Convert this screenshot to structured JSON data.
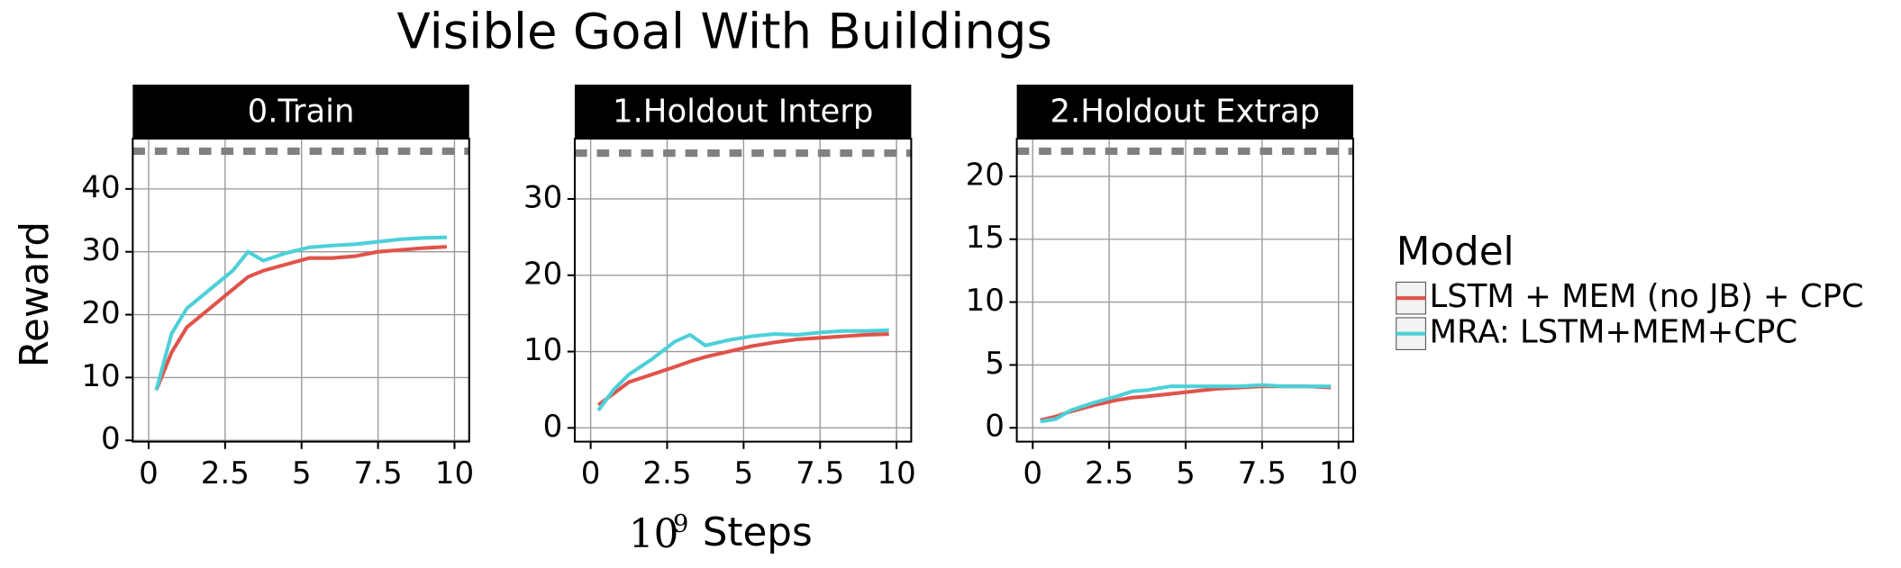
{
  "title": "Visible Goal With Buildings",
  "ylabel": "Reward",
  "xlabel_base": "10",
  "xlabel_exponent": "9",
  "xlabel": "Steps",
  "legend_title": "Model",
  "chart_data": [
    {
      "type": "line",
      "title": "0.Train",
      "x": [
        0.25,
        0.75,
        1.25,
        2,
        2.75,
        3.25,
        3.75,
        4.5,
        5.25,
        6,
        6.75,
        7.5,
        8.25,
        9,
        9.75
      ],
      "series": [
        {
          "name": "LSTM + MEM (no JB) + CPC",
          "color": "#e0534a",
          "values": [
            8,
            14,
            18,
            21,
            24,
            26,
            27,
            28,
            29,
            29,
            29.3,
            30,
            30.3,
            30.6,
            30.8
          ]
        },
        {
          "name": "MRA: LSTM+MEM+CPC",
          "color": "#4dd0d8",
          "values": [
            8,
            17,
            21,
            24,
            27,
            30,
            28.6,
            29.8,
            30.7,
            31,
            31.2,
            31.6,
            32,
            32.2,
            32.3
          ]
        }
      ],
      "reference_line": 46,
      "xlim": [
        -0.52,
        10.48
      ],
      "ylim": [
        -0.2,
        48
      ],
      "xticks": [
        0,
        2.5,
        5,
        7.5,
        10
      ],
      "yticks": [
        0,
        10,
        20,
        30,
        40
      ],
      "grid": true
    },
    {
      "type": "line",
      "title": "1.Holdout Interp",
      "x": [
        0.25,
        0.75,
        1.25,
        2,
        2.75,
        3.25,
        3.75,
        4.5,
        5.25,
        6,
        6.75,
        7.5,
        8.25,
        9,
        9.75
      ],
      "series": [
        {
          "name": "LSTM + MEM (no JB) + CPC",
          "color": "#e0534a",
          "values": [
            3,
            4.5,
            6,
            7,
            8,
            8.7,
            9.3,
            10,
            10.7,
            11.2,
            11.6,
            11.8,
            12,
            12.2,
            12.3
          ]
        },
        {
          "name": "MRA: LSTM+MEM+CPC",
          "color": "#4dd0d8",
          "values": [
            2.3,
            5,
            7,
            9,
            11.3,
            12.2,
            10.8,
            11.5,
            12,
            12.3,
            12.2,
            12.5,
            12.7,
            12.7,
            12.8
          ]
        }
      ],
      "reference_line": 36,
      "xlim": [
        -0.52,
        10.48
      ],
      "ylim": [
        -1.8,
        37.9
      ],
      "xticks": [
        0,
        2.5,
        5,
        7.5,
        10
      ],
      "yticks": [
        0,
        10,
        20,
        30
      ],
      "grid": true
    },
    {
      "type": "line",
      "title": "2.Holdout Extrap",
      "x": [
        0.25,
        0.75,
        1.25,
        2,
        2.75,
        3.25,
        3.75,
        4.5,
        5.25,
        6,
        6.75,
        7.5,
        8.25,
        9,
        9.75
      ],
      "series": [
        {
          "name": "LSTM + MEM (no JB) + CPC",
          "color": "#e0534a",
          "values": [
            0.6,
            0.9,
            1.3,
            1.8,
            2.2,
            2.4,
            2.5,
            2.7,
            2.9,
            3.1,
            3.2,
            3.3,
            3.3,
            3.3,
            3.2
          ]
        },
        {
          "name": "MRA: LSTM+MEM+CPC",
          "color": "#4dd0d8",
          "values": [
            0.5,
            0.7,
            1.4,
            2,
            2.5,
            2.9,
            3,
            3.3,
            3.3,
            3.3,
            3.3,
            3.4,
            3.3,
            3.3,
            3.3
          ]
        }
      ],
      "reference_line": 22,
      "xlim": [
        -0.52,
        10.48
      ],
      "ylim": [
        -1.1,
        23
      ],
      "xticks": [
        0,
        2.5,
        5,
        7.5,
        10
      ],
      "yticks": [
        0,
        5,
        10,
        15,
        20
      ],
      "grid": true
    }
  ]
}
